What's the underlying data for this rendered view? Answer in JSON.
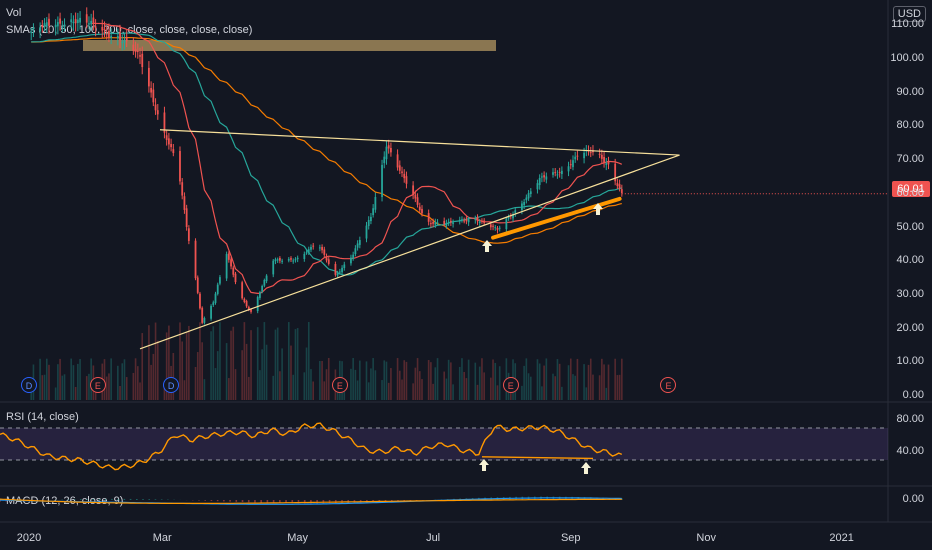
{
  "header": {
    "vol_label": "Vol",
    "sma_label": "SMAs (20, 50, 100, 200, close, close, close, close)",
    "currency": "USD"
  },
  "last_price": "60.01",
  "rsi_label": "RSI (14, close)",
  "macd_label": "MACD (12, 26, close, 9)",
  "events": [
    {
      "type": "D",
      "x_label": "Jan"
    },
    {
      "type": "E",
      "x_label": "Feb"
    },
    {
      "type": "D",
      "x_label": "Mar"
    },
    {
      "type": "E",
      "x_label": "May"
    },
    {
      "type": "E",
      "x_label": "Aug"
    },
    {
      "type": "E",
      "x_label": "Oct"
    }
  ],
  "colors": {
    "up": "#26a69a",
    "down": "#ef5350",
    "sma20": "#ef5350",
    "sma50": "#26a69a",
    "sma100": "#f57c00",
    "trend": "#f7e09b",
    "rsi": "#ff9800",
    "macd": "#2196f3",
    "signal": "#ff9800"
  },
  "chart_data": [
    {
      "type": "candlestick",
      "ylim": [
        0,
        110
      ],
      "yticks": [
        "110.00",
        "100.00",
        "90.00",
        "80.00",
        "70.00",
        "60.00",
        "50.00",
        "40.00",
        "30.00",
        "20.00",
        "10.00",
        "0.00"
      ],
      "xticks": [
        "2020",
        "Mar",
        "May",
        "Jul",
        "Sep",
        "Nov",
        "2021"
      ],
      "price_path": [
        {
          "date": "2020-01-02",
          "close": 108
        },
        {
          "date": "2020-01-20",
          "close": 112
        },
        {
          "date": "2020-02-10",
          "close": 107
        },
        {
          "date": "2020-02-20",
          "close": 100
        },
        {
          "date": "2020-02-26",
          "close": 88
        },
        {
          "date": "2020-03-01",
          "close": 80
        },
        {
          "date": "2020-03-08",
          "close": 68
        },
        {
          "date": "2020-03-12",
          "close": 50
        },
        {
          "date": "2020-03-16",
          "close": 35
        },
        {
          "date": "2020-03-19",
          "close": 22
        },
        {
          "date": "2020-03-24",
          "close": 28
        },
        {
          "date": "2020-03-30",
          "close": 42
        },
        {
          "date": "2020-04-05",
          "close": 30
        },
        {
          "date": "2020-04-10",
          "close": 25
        },
        {
          "date": "2020-04-20",
          "close": 40
        },
        {
          "date": "2020-05-01",
          "close": 41
        },
        {
          "date": "2020-05-10",
          "close": 45
        },
        {
          "date": "2020-05-18",
          "close": 36
        },
        {
          "date": "2020-05-26",
          "close": 42
        },
        {
          "date": "2020-06-03",
          "close": 53
        },
        {
          "date": "2020-06-10",
          "close": 75
        },
        {
          "date": "2020-06-18",
          "close": 64
        },
        {
          "date": "2020-06-28",
          "close": 52
        },
        {
          "date": "2020-07-08",
          "close": 51
        },
        {
          "date": "2020-07-20",
          "close": 53
        },
        {
          "date": "2020-07-30",
          "close": 49
        },
        {
          "date": "2020-08-08",
          "close": 56
        },
        {
          "date": "2020-08-18",
          "close": 64
        },
        {
          "date": "2020-08-28",
          "close": 67
        },
        {
          "date": "2020-09-05",
          "close": 72
        },
        {
          "date": "2020-09-12",
          "close": 72
        },
        {
          "date": "2020-09-18",
          "close": 69
        },
        {
          "date": "2020-09-22",
          "close": 63
        },
        {
          "date": "2020-09-24",
          "close": 60.01
        }
      ],
      "trendlines": [
        {
          "name": "upper",
          "from": {
            "date": "2020-02-29",
            "price": 79
          },
          "to": {
            "date": "2020-10-20",
            "price": 71.5
          }
        },
        {
          "name": "lower",
          "from": {
            "date": "2020-02-20",
            "price": 14
          },
          "to": {
            "date": "2020-10-20",
            "price": 71.5
          }
        }
      ]
    },
    {
      "type": "line",
      "name": "RSI",
      "ylim": [
        0,
        100
      ],
      "yticks": [
        "80.00",
        "40.00"
      ],
      "bands": [
        70,
        30
      ],
      "values": [
        62,
        55,
        45,
        35,
        32,
        30,
        25,
        20,
        22,
        28,
        40,
        62,
        55,
        60,
        63,
        65,
        60,
        68,
        62,
        72,
        74,
        66,
        55,
        42,
        40,
        45,
        38,
        47,
        50,
        42,
        38,
        72,
        68,
        70,
        71,
        66,
        55,
        44,
        40,
        35
      ]
    },
    {
      "type": "line",
      "name": "MACD",
      "yticks": [
        "0.00"
      ]
    }
  ]
}
